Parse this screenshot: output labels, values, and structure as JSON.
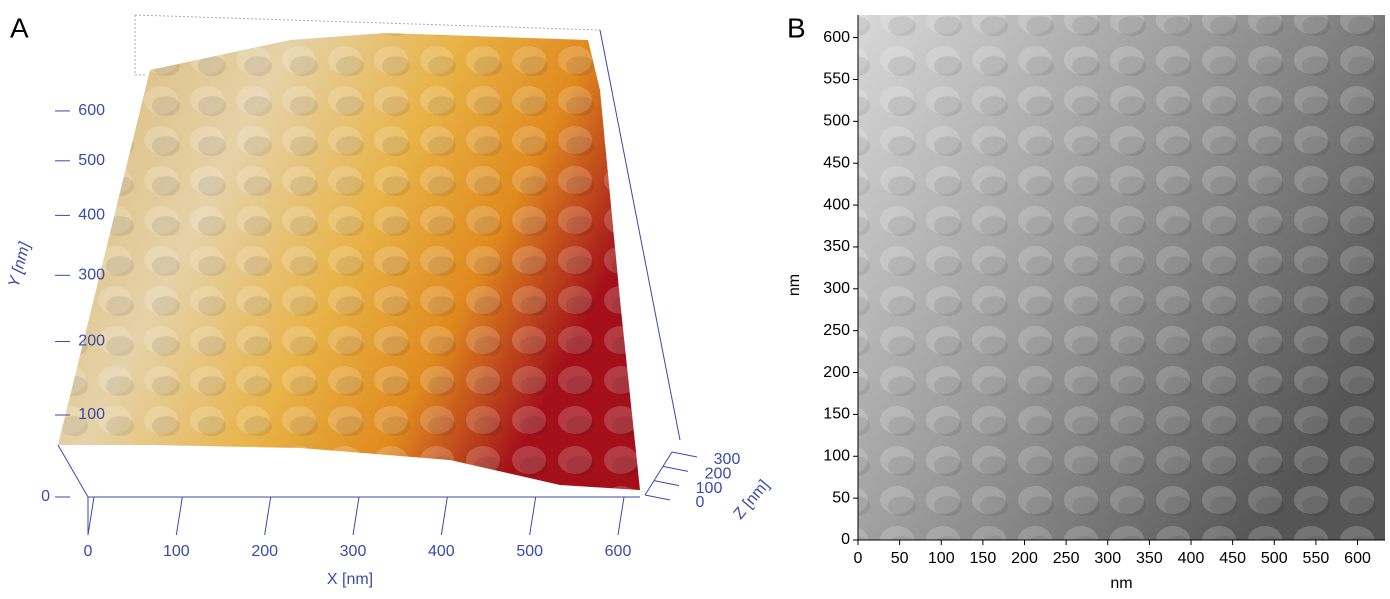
{
  "chart_data": [
    {
      "type": "surface",
      "panel_label": "A",
      "xlabel": "X [nm]",
      "ylabel": "Y [nm]",
      "zlabel": "Z [nm]",
      "xlim": [
        0,
        600
      ],
      "xticks": [
        0,
        100,
        200,
        300,
        400,
        500,
        600
      ],
      "ylim": [
        0,
        600
      ],
      "yticks": [
        0,
        100,
        200,
        300,
        400,
        500,
        600
      ],
      "zlim": [
        0,
        300
      ],
      "zticks": [
        0,
        100,
        200,
        300
      ],
      "axis_color": "#3a4aa8"
    },
    {
      "type": "image",
      "panel_label": "B",
      "xlabel": "nm",
      "ylabel": "nm",
      "xlim": [
        0,
        633
      ],
      "xticks": [
        0,
        50,
        100,
        150,
        200,
        250,
        300,
        350,
        400,
        450,
        500,
        550,
        600
      ],
      "ylim": [
        0,
        627
      ],
      "yticks": [
        0,
        50,
        100,
        150,
        200,
        250,
        300,
        350,
        400,
        450,
        500,
        550,
        600
      ],
      "axis_color": "#000000"
    }
  ]
}
